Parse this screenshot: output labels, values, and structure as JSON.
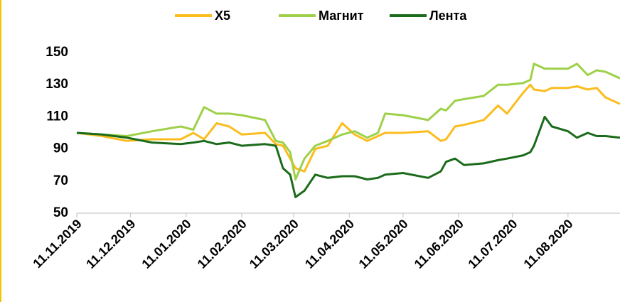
{
  "chart_data": {
    "type": "line",
    "x": [
      "11.11.2019",
      "25.11.2019",
      "09.12.2019",
      "23.12.2019",
      "08.01.2020",
      "15.01.2020",
      "21.01.2020",
      "28.01.2020",
      "04.02.2020",
      "11.02.2020",
      "24.02.2020",
      "01.03.2020",
      "05.03.2020",
      "09.03.2020",
      "12.03.2020",
      "17.03.2020",
      "23.03.2020",
      "30.03.2020",
      "07.04.2020",
      "14.04.2020",
      "21.04.2020",
      "27.04.2020",
      "01.05.2020",
      "11.05.2020",
      "25.05.2020",
      "01.06.2020",
      "04.06.2020",
      "09.06.2020",
      "14.06.2020",
      "25.06.2020",
      "03.07.2020",
      "08.07.2020",
      "17.07.2020",
      "21.07.2020",
      "23.07.2020",
      "29.07.2020",
      "02.08.2020",
      "11.08.2020",
      "16.08.2020",
      "22.08.2020",
      "27.08.2020",
      "01.09.2020",
      "09.09.2020"
    ],
    "series": [
      {
        "name": "X5",
        "color": "#fbbd1e",
        "values": [
          100,
          98,
          95,
          96,
          96,
          100,
          96,
          106,
          104,
          99,
          100,
          93,
          92,
          84,
          78,
          76,
          90,
          92,
          106,
          99,
          95,
          98,
          100,
          100,
          101,
          95,
          96,
          104,
          105,
          108,
          117,
          112,
          125,
          130,
          127,
          126,
          128,
          128,
          129,
          127,
          128,
          122,
          118
        ]
      },
      {
        "name": "Магнит",
        "color": "#9ed04a",
        "values": [
          100,
          99,
          98,
          101,
          104,
          102,
          116,
          112,
          112,
          111,
          108,
          95,
          94,
          88,
          71,
          84,
          92,
          95,
          99,
          101,
          97,
          100,
          112,
          111,
          108,
          115,
          114,
          120,
          121,
          123,
          130,
          130,
          131,
          133,
          143,
          140,
          140,
          140,
          143,
          136,
          139,
          138,
          134
        ]
      },
      {
        "name": "Лента",
        "color": "#1b6b1b",
        "values": [
          100,
          99,
          97,
          94,
          93,
          94,
          95,
          93,
          94,
          92,
          93,
          92,
          78,
          74,
          60,
          64,
          74,
          72,
          73,
          73,
          71,
          72,
          74,
          75,
          72,
          76,
          82,
          84,
          80,
          81,
          83,
          84,
          86,
          88,
          92,
          110,
          104,
          101,
          97,
          100,
          98,
          98,
          97
        ]
      }
    ],
    "xlim": [
      "11.11.2019",
      "09.09.2020"
    ],
    "xticks": [
      "11.11.2019",
      "11.12.2019",
      "11.01.2020",
      "11.02.2020",
      "11.03.2020",
      "11.04.2020",
      "11.05.2020",
      "11.06.2020",
      "11.07.2020",
      "11.08.2020"
    ],
    "ylim": [
      50,
      150
    ],
    "yticks": [
      50,
      70,
      90,
      110,
      130,
      150
    ],
    "legend": "top"
  }
}
